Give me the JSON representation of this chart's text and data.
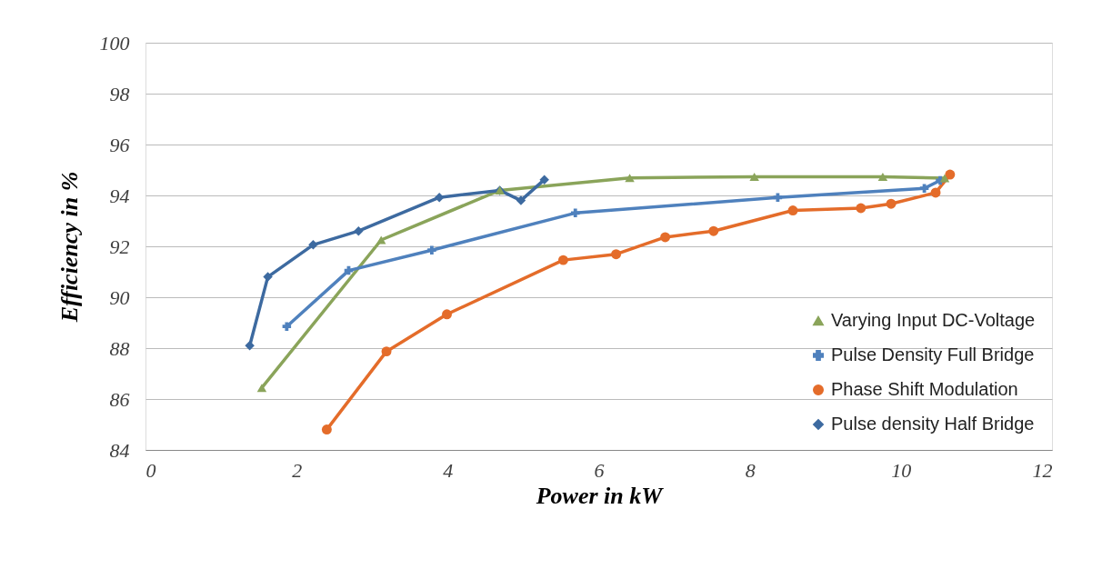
{
  "chart_data": {
    "type": "line",
    "xlabel": "Power in kW",
    "ylabel": "Efficiency in %",
    "xlim": [
      0,
      12
    ],
    "xticks": [
      0,
      2,
      4,
      6,
      8,
      10,
      12
    ],
    "ylim": [
      84,
      100
    ],
    "yticks": [
      84,
      86,
      88,
      90,
      92,
      94,
      96,
      98,
      100
    ],
    "grid": "y",
    "legend": "bottom right",
    "series": [
      {
        "name": "Varying Input DC-Voltage",
        "color": "#8aa45a",
        "marker": "triangle",
        "x": [
          1.54,
          3.12,
          4.69,
          6.41,
          8.06,
          9.76,
          10.58
        ],
        "values": [
          86.44,
          92.25,
          94.2,
          94.69,
          94.73,
          94.73,
          94.68
        ]
      },
      {
        "name": "Pulse Density Full Bridge",
        "color": "#4f81bd",
        "marker": "cross",
        "x": [
          1.87,
          2.69,
          3.79,
          5.69,
          8.37,
          10.31,
          10.52
        ],
        "values": [
          88.85,
          91.05,
          91.85,
          93.31,
          93.92,
          94.28,
          94.59
        ]
      },
      {
        "name": "Phase Shift Modulation",
        "color": "#e46c2a",
        "marker": "circle",
        "x": [
          2.4,
          3.19,
          3.99,
          5.53,
          6.23,
          6.88,
          7.52,
          8.57,
          9.47,
          9.87,
          10.46,
          10.65
        ],
        "values": [
          84.8,
          87.87,
          89.33,
          91.46,
          91.69,
          92.36,
          92.6,
          93.41,
          93.5,
          93.67,
          94.11,
          94.82
        ]
      },
      {
        "name": "Pulse density Half Bridge",
        "color": "#3d6aa0",
        "marker": "diamond",
        "x": [
          1.38,
          1.62,
          2.22,
          2.82,
          3.89,
          4.69,
          4.97,
          5.28
        ],
        "values": [
          88.1,
          90.8,
          92.06,
          92.6,
          93.92,
          94.2,
          93.8,
          94.62
        ]
      }
    ]
  }
}
